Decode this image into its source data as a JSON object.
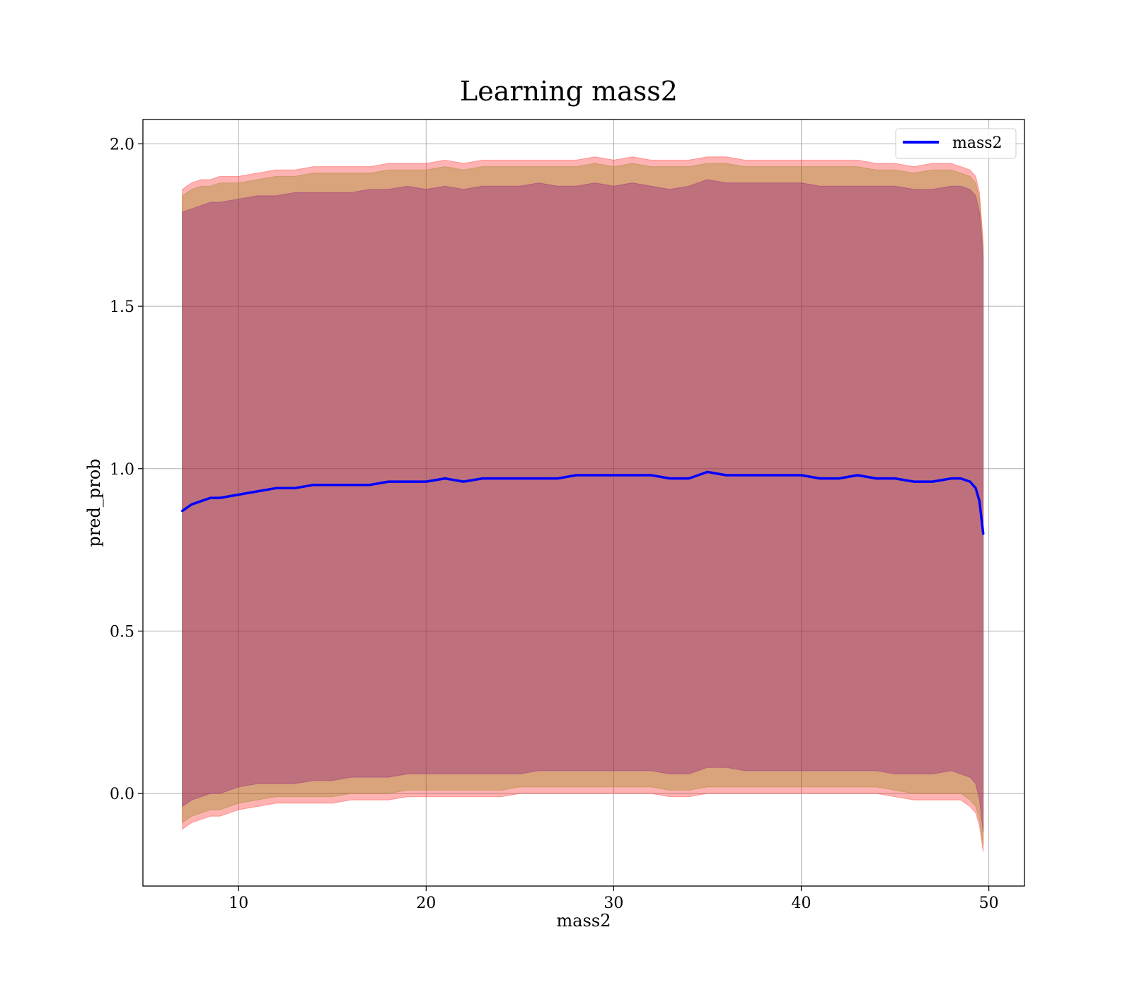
{
  "chart_data": {
    "type": "line",
    "title": "Learning mass2",
    "xlabel": "mass2",
    "ylabel": "pred_prob",
    "xlim": [
      4.9,
      51.9
    ],
    "ylim": [
      -0.285,
      2.075
    ],
    "xticks": [
      10,
      20,
      30,
      40,
      50
    ],
    "yticks": [
      0.0,
      0.5,
      1.0,
      1.5,
      2.0
    ],
    "xtick_labels": [
      "10",
      "20",
      "30",
      "40",
      50
    ],
    "ytick_labels": [
      "0.0",
      "0.5",
      "1.0",
      "1.5",
      "2.0"
    ],
    "grid": true,
    "legend": {
      "position": "top-right",
      "entries": [
        "mass2"
      ]
    },
    "colors": {
      "line": "#0000ff",
      "band_outer": "#ff0000",
      "band_middle": "#808000",
      "band_inner": "#800080"
    },
    "series": [
      {
        "name": "mass2",
        "x": [
          7.0,
          7.5,
          8.0,
          8.5,
          9.0,
          10.0,
          11.0,
          12.0,
          13.0,
          14.0,
          15.0,
          16.0,
          17.0,
          18.0,
          19.0,
          20.0,
          21.0,
          22.0,
          23.0,
          24.0,
          25.0,
          26.0,
          27.0,
          28.0,
          29.0,
          30.0,
          31.0,
          32.0,
          33.0,
          34.0,
          35.0,
          36.0,
          37.0,
          38.0,
          39.0,
          40.0,
          41.0,
          42.0,
          43.0,
          44.0,
          45.0,
          46.0,
          47.0,
          48.0,
          48.5,
          49.0,
          49.3,
          49.5,
          49.7
        ],
        "values": [
          0.87,
          0.89,
          0.9,
          0.91,
          0.91,
          0.92,
          0.93,
          0.94,
          0.94,
          0.95,
          0.95,
          0.95,
          0.95,
          0.96,
          0.96,
          0.96,
          0.97,
          0.96,
          0.97,
          0.97,
          0.97,
          0.97,
          0.97,
          0.98,
          0.98,
          0.98,
          0.98,
          0.98,
          0.97,
          0.97,
          0.99,
          0.98,
          0.98,
          0.98,
          0.98,
          0.98,
          0.97,
          0.97,
          0.98,
          0.97,
          0.97,
          0.96,
          0.96,
          0.97,
          0.97,
          0.96,
          0.94,
          0.9,
          0.8
        ]
      }
    ],
    "bands": [
      {
        "color": "#ff0000",
        "x": [
          7.0,
          7.5,
          8.0,
          8.5,
          9.0,
          10.0,
          11.0,
          12.0,
          13.0,
          14.0,
          15.0,
          16.0,
          17.0,
          18.0,
          19.0,
          20.0,
          21.0,
          22.0,
          23.0,
          24.0,
          25.0,
          26.0,
          27.0,
          28.0,
          29.0,
          30.0,
          31.0,
          32.0,
          33.0,
          34.0,
          35.0,
          36.0,
          37.0,
          38.0,
          39.0,
          40.0,
          41.0,
          42.0,
          43.0,
          44.0,
          45.0,
          46.0,
          47.0,
          48.0,
          48.5,
          49.0,
          49.3,
          49.5,
          49.7
        ],
        "upper": [
          1.86,
          1.88,
          1.89,
          1.89,
          1.9,
          1.9,
          1.91,
          1.92,
          1.92,
          1.93,
          1.93,
          1.93,
          1.93,
          1.94,
          1.94,
          1.94,
          1.95,
          1.94,
          1.95,
          1.95,
          1.95,
          1.95,
          1.95,
          1.95,
          1.96,
          1.95,
          1.96,
          1.95,
          1.95,
          1.95,
          1.96,
          1.96,
          1.95,
          1.95,
          1.95,
          1.95,
          1.95,
          1.95,
          1.95,
          1.94,
          1.94,
          1.93,
          1.94,
          1.94,
          1.93,
          1.92,
          1.9,
          1.85,
          1.7
        ],
        "lower": [
          -0.11,
          -0.09,
          -0.08,
          -0.07,
          -0.07,
          -0.05,
          -0.04,
          -0.03,
          -0.03,
          -0.03,
          -0.03,
          -0.02,
          -0.02,
          -0.02,
          -0.01,
          -0.01,
          -0.01,
          -0.01,
          -0.01,
          -0.01,
          0.0,
          0.0,
          0.0,
          0.0,
          0.0,
          0.0,
          0.0,
          0.0,
          -0.01,
          -0.01,
          0.0,
          0.0,
          0.0,
          0.0,
          0.0,
          0.0,
          0.0,
          0.0,
          0.0,
          0.0,
          -0.01,
          -0.02,
          -0.02,
          -0.02,
          -0.02,
          -0.04,
          -0.06,
          -0.1,
          -0.18
        ]
      },
      {
        "color": "#808000",
        "x": [
          7.0,
          7.5,
          8.0,
          8.5,
          9.0,
          10.0,
          11.0,
          12.0,
          13.0,
          14.0,
          15.0,
          16.0,
          17.0,
          18.0,
          19.0,
          20.0,
          21.0,
          22.0,
          23.0,
          24.0,
          25.0,
          26.0,
          27.0,
          28.0,
          29.0,
          30.0,
          31.0,
          32.0,
          33.0,
          34.0,
          35.0,
          36.0,
          37.0,
          38.0,
          39.0,
          40.0,
          41.0,
          42.0,
          43.0,
          44.0,
          45.0,
          46.0,
          47.0,
          48.0,
          48.5,
          49.0,
          49.3,
          49.5,
          49.7
        ],
        "upper": [
          1.84,
          1.86,
          1.87,
          1.87,
          1.88,
          1.88,
          1.89,
          1.9,
          1.9,
          1.91,
          1.91,
          1.91,
          1.91,
          1.92,
          1.92,
          1.92,
          1.93,
          1.92,
          1.93,
          1.93,
          1.93,
          1.93,
          1.93,
          1.93,
          1.94,
          1.93,
          1.94,
          1.93,
          1.93,
          1.93,
          1.94,
          1.94,
          1.93,
          1.93,
          1.93,
          1.93,
          1.93,
          1.93,
          1.93,
          1.92,
          1.92,
          1.91,
          1.92,
          1.92,
          1.91,
          1.9,
          1.88,
          1.83,
          1.68
        ],
        "lower": [
          -0.09,
          -0.07,
          -0.06,
          -0.05,
          -0.05,
          -0.03,
          -0.02,
          -0.01,
          -0.01,
          -0.01,
          -0.01,
          0.0,
          0.0,
          0.0,
          0.01,
          0.01,
          0.01,
          0.01,
          0.01,
          0.01,
          0.02,
          0.02,
          0.02,
          0.02,
          0.02,
          0.02,
          0.02,
          0.02,
          0.01,
          0.01,
          0.02,
          0.02,
          0.02,
          0.02,
          0.02,
          0.02,
          0.02,
          0.02,
          0.02,
          0.02,
          0.01,
          0.0,
          0.0,
          0.0,
          0.0,
          -0.02,
          -0.04,
          -0.08,
          -0.16
        ]
      },
      {
        "color": "#800080",
        "x": [
          7.0,
          7.5,
          8.0,
          8.5,
          9.0,
          10.0,
          11.0,
          12.0,
          13.0,
          14.0,
          15.0,
          16.0,
          17.0,
          18.0,
          19.0,
          20.0,
          21.0,
          22.0,
          23.0,
          24.0,
          25.0,
          26.0,
          27.0,
          28.0,
          29.0,
          30.0,
          31.0,
          32.0,
          33.0,
          34.0,
          35.0,
          36.0,
          37.0,
          38.0,
          39.0,
          40.0,
          41.0,
          42.0,
          43.0,
          44.0,
          45.0,
          46.0,
          47.0,
          48.0,
          48.5,
          49.0,
          49.3,
          49.5,
          49.7
        ],
        "upper": [
          1.79,
          1.8,
          1.81,
          1.82,
          1.82,
          1.83,
          1.84,
          1.84,
          1.85,
          1.85,
          1.85,
          1.85,
          1.86,
          1.86,
          1.87,
          1.86,
          1.87,
          1.86,
          1.87,
          1.87,
          1.87,
          1.88,
          1.87,
          1.87,
          1.88,
          1.87,
          1.88,
          1.87,
          1.86,
          1.87,
          1.89,
          1.88,
          1.88,
          1.88,
          1.88,
          1.88,
          1.87,
          1.87,
          1.87,
          1.87,
          1.87,
          1.86,
          1.86,
          1.87,
          1.87,
          1.86,
          1.84,
          1.79,
          1.65
        ],
        "lower": [
          -0.04,
          -0.02,
          -0.01,
          0.0,
          0.0,
          0.02,
          0.03,
          0.03,
          0.03,
          0.04,
          0.04,
          0.05,
          0.05,
          0.05,
          0.06,
          0.06,
          0.06,
          0.06,
          0.06,
          0.06,
          0.06,
          0.07,
          0.07,
          0.07,
          0.07,
          0.07,
          0.07,
          0.07,
          0.06,
          0.06,
          0.08,
          0.08,
          0.07,
          0.07,
          0.07,
          0.07,
          0.07,
          0.07,
          0.07,
          0.07,
          0.06,
          0.06,
          0.06,
          0.07,
          0.06,
          0.05,
          0.03,
          -0.02,
          -0.12
        ]
      }
    ]
  }
}
